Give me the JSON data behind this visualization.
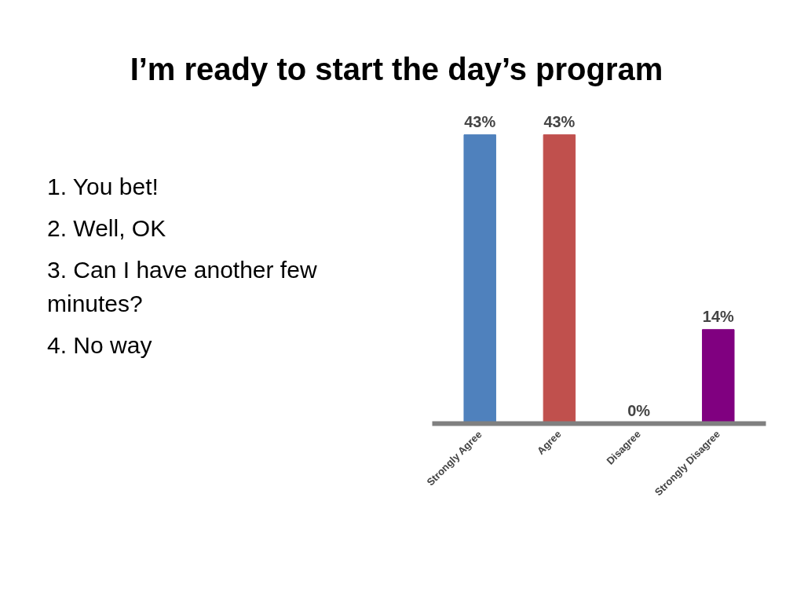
{
  "chart_data": {
    "type": "bar",
    "title": "I’m ready to start the day’s program",
    "categories": [
      "Strongly Agree",
      "Agree",
      "Disagree",
      "Strongly Disagree"
    ],
    "values": [
      43,
      43,
      0,
      14
    ],
    "colors": [
      "#4f81bd",
      "#c0504d",
      "#1a1acc",
      "#800080"
    ],
    "value_labels": [
      "43%",
      "43%",
      "0%",
      "14%"
    ],
    "grid": false,
    "annotations": [
      "1.  You bet!",
      "2.  Well, OK",
      "3.  Can I have another few minutes?",
      "4.  No way"
    ]
  }
}
